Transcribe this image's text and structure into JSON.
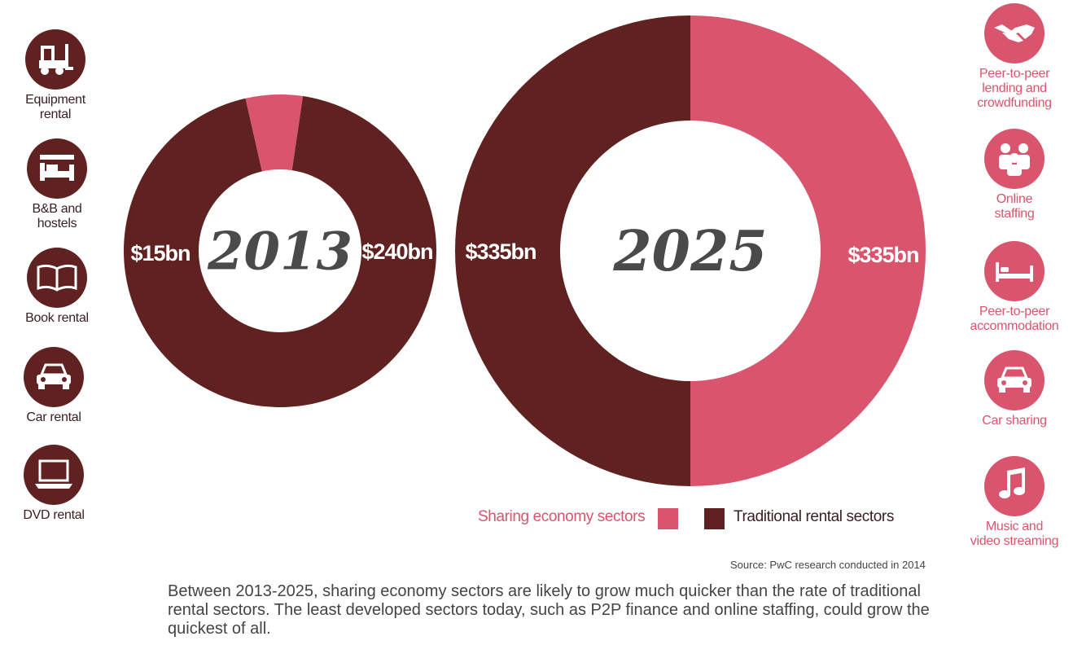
{
  "chart_data": {
    "type": "donut",
    "series_names": [
      "Sharing economy sectors",
      "Traditional rental sectors"
    ],
    "charts": [
      {
        "center_label": "2013",
        "values": [
          15,
          240
        ],
        "labels": [
          "$15bn",
          "$240bn"
        ]
      },
      {
        "center_label": "2025",
        "values": [
          335,
          335
        ],
        "labels": [
          "$335bn",
          "$335bn"
        ]
      }
    ],
    "colors": {
      "sharing": "#d9556d",
      "traditional": "#5f2220"
    }
  },
  "legend": {
    "sharing": "Sharing economy sectors",
    "traditional": "Traditional rental sectors"
  },
  "left_icons": [
    {
      "icon": "forklift-icon",
      "label_lines": [
        "Equipment",
        "rental"
      ]
    },
    {
      "icon": "bed-icon",
      "label_lines": [
        "B&B and",
        "hostels"
      ]
    },
    {
      "icon": "book-icon",
      "label_lines": [
        "Book rental"
      ]
    },
    {
      "icon": "car-icon",
      "label_lines": [
        "Car rental"
      ]
    },
    {
      "icon": "laptop-icon",
      "label_lines": [
        "DVD rental"
      ]
    }
  ],
  "right_icons": [
    {
      "icon": "handshake-icon",
      "label_lines": [
        "Peer-to-peer",
        "lending and",
        "crowdfunding"
      ]
    },
    {
      "icon": "people-icon",
      "label_lines": [
        "Online",
        "staffing"
      ]
    },
    {
      "icon": "bed-icon",
      "label_lines": [
        "Peer-to-peer",
        "accommodation"
      ]
    },
    {
      "icon": "car-icon",
      "label_lines": [
        "Car sharing"
      ]
    },
    {
      "icon": "music-note-icon",
      "label_lines": [
        "Music and",
        "video streaming"
      ]
    }
  ],
  "source": "Source: PwC research conducted in 2014",
  "caption": "Between 2013-2025, sharing economy sectors are likely to grow much quicker than the rate of traditional rental sectors. The least developed sectors today, such as P2P finance and online staffing, could grow the quickest of all."
}
